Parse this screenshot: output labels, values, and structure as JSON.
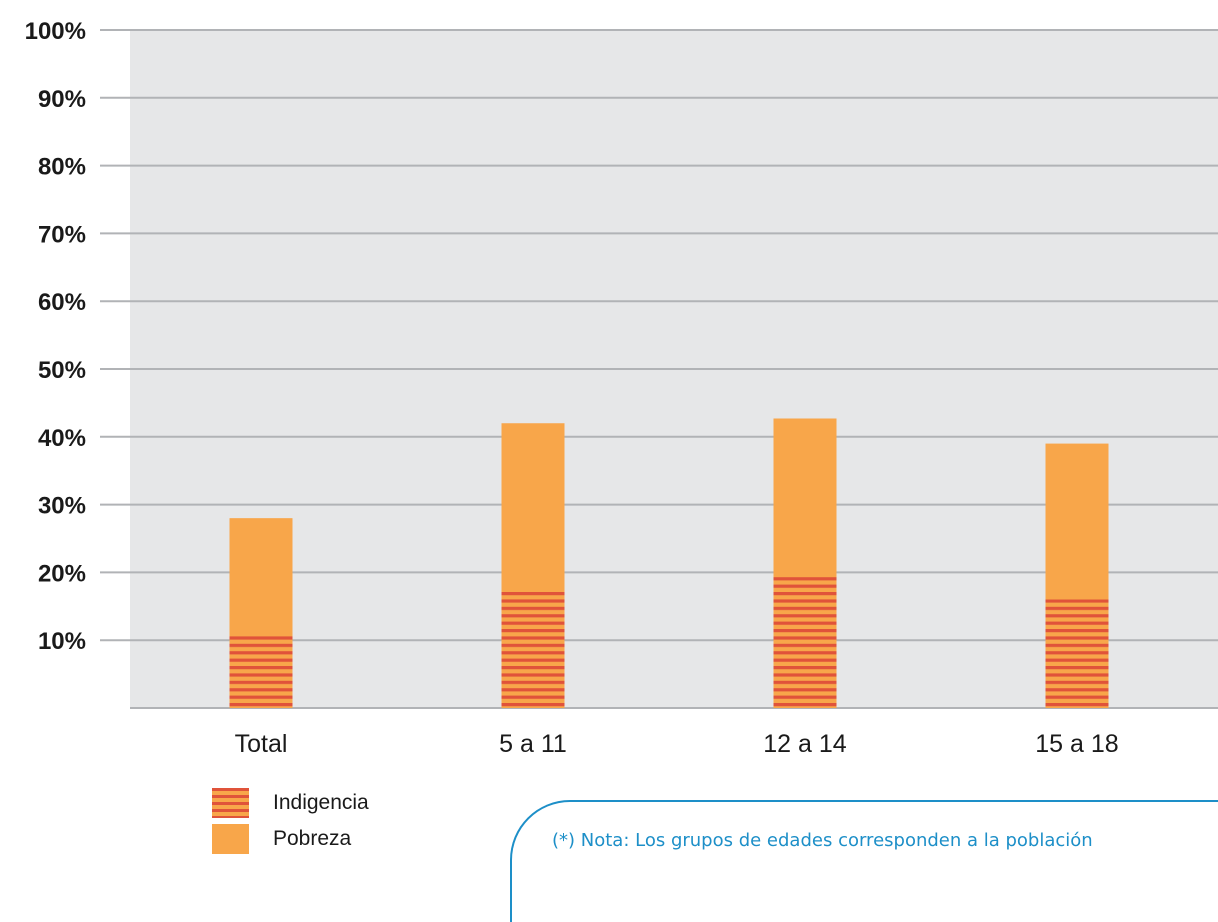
{
  "chart_data": {
    "type": "bar",
    "stacked": true,
    "categories": [
      "Total",
      "5 a 11",
      "12 a 14",
      "15 a 18"
    ],
    "series": [
      {
        "name": "Indigencia",
        "values": [
          11,
          17.5,
          19.5,
          16
        ],
        "color": "#e0533a",
        "pattern": "striped"
      },
      {
        "name": "Pobreza",
        "values": [
          28,
          42,
          42.7,
          39
        ],
        "color": "#f8a64a",
        "pattern": "solid"
      }
    ],
    "y_ticks": [
      "10%",
      "20%",
      "30%",
      "40%",
      "50%",
      "60%",
      "70%",
      "80%",
      "90%",
      "100%"
    ],
    "ylim": [
      0,
      100
    ],
    "grid": true,
    "plot_background": "#e6e7e8",
    "gridline_color": "#b1b3b6",
    "legend_position": "bottom-left"
  },
  "legend": {
    "items": [
      {
        "label": "Indigencia"
      },
      {
        "label": "Pobreza"
      }
    ]
  },
  "note": {
    "text": "(*) Nota: Los grupos de edades corresponden a la población"
  }
}
